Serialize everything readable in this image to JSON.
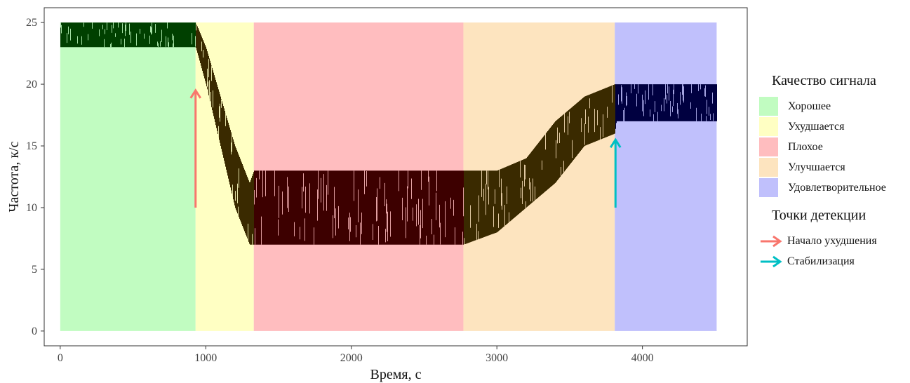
{
  "chart_data": {
    "type": "area",
    "xlabel": "Время, с",
    "ylabel": "Частота, к/с",
    "xlim": [
      -110,
      4720
    ],
    "ylim": [
      -1.2,
      26.2
    ],
    "x_ticks": [
      0,
      1000,
      2000,
      3000,
      4000
    ],
    "y_ticks": [
      0,
      5,
      10,
      15,
      20,
      25
    ],
    "grid": false,
    "legend_position": "right",
    "regions": [
      {
        "name": "Хорошее",
        "x_start": 0,
        "x_end": 930,
        "color": "#C1FCC1"
      },
      {
        "name": "Ухудшается",
        "x_start": 930,
        "x_end": 1330,
        "color": "#FFFFC3"
      },
      {
        "name": "Плохое",
        "x_start": 1330,
        "x_end": 2770,
        "color": "#FFBDBF"
      },
      {
        "name": "Улучшается",
        "x_start": 2770,
        "x_end": 3810,
        "color": "#FDE4BF"
      },
      {
        "name": "Удовлетворительное",
        "x_start": 3810,
        "x_end": 4510,
        "color": "#C0C0FC"
      }
    ],
    "region_y_range": [
      0,
      25
    ],
    "signal_envelope": [
      {
        "x": 0,
        "low": 23,
        "high": 25
      },
      {
        "x": 930,
        "low": 23,
        "high": 25
      },
      {
        "x": 1000,
        "low": 20,
        "high": 23
      },
      {
        "x": 1100,
        "low": 15,
        "high": 19
      },
      {
        "x": 1200,
        "low": 10,
        "high": 15
      },
      {
        "x": 1300,
        "low": 7,
        "high": 12
      },
      {
        "x": 1330,
        "low": 7,
        "high": 13
      },
      {
        "x": 2770,
        "low": 7,
        "high": 13
      },
      {
        "x": 3000,
        "low": 8,
        "high": 13
      },
      {
        "x": 3200,
        "low": 10,
        "high": 14
      },
      {
        "x": 3400,
        "low": 12,
        "high": 17
      },
      {
        "x": 3600,
        "low": 15,
        "high": 19
      },
      {
        "x": 3810,
        "low": 16,
        "high": 20
      },
      {
        "x": 3820,
        "low": 17,
        "high": 20
      },
      {
        "x": 4510,
        "low": 17,
        "high": 20
      }
    ],
    "detection_points": [
      {
        "name": "Начало ухудшения",
        "x": 930,
        "y_start": 10,
        "y_end": 19.5,
        "color": "#F8766D"
      },
      {
        "name": "Стабилизация",
        "x": 3815,
        "y_start": 10,
        "y_end": 15.5,
        "color": "#00BFC4"
      }
    ]
  },
  "legend": {
    "quality_title": "Качество сигнала",
    "quality_items": [
      {
        "label": "Хорошее",
        "color": "#C1FCC1"
      },
      {
        "label": "Ухудшается",
        "color": "#FFFFC3"
      },
      {
        "label": "Плохое",
        "color": "#FFBDBF"
      },
      {
        "label": "Улучшается",
        "color": "#FDE4BF"
      },
      {
        "label": "Удовлетворительное",
        "color": "#C0C0FC"
      }
    ],
    "detection_title": "Точки детекции",
    "detection_items": [
      {
        "label": "Начало ухудшения",
        "color": "#F8766D"
      },
      {
        "label": "Стабилизация",
        "color": "#00BFC4"
      }
    ]
  }
}
